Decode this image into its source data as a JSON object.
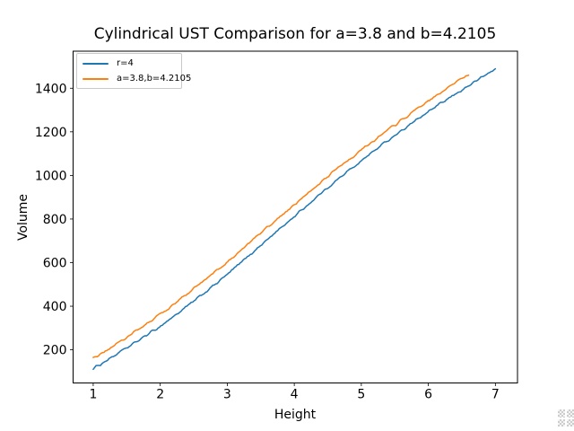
{
  "window": {
    "background": "#ffffff"
  },
  "chart_data": {
    "type": "line",
    "title": "Cylindrical UST Comparison for a=3.8 and b=4.2105",
    "xlabel": "Height",
    "ylabel": "Volume",
    "xlim": [
      0.7,
      7.33
    ],
    "ylim": [
      48,
      1570
    ],
    "x_ticks": [
      1,
      2,
      3,
      4,
      5,
      6,
      7
    ],
    "y_ticks": [
      200,
      400,
      600,
      800,
      1000,
      1200,
      1400
    ],
    "grid": false,
    "legend_position": "upper-left",
    "series": [
      {
        "name": "r=4",
        "color": "#1f77b4",
        "points": [
          [
            1.0,
            114
          ],
          [
            1.5,
            208
          ],
          [
            2.0,
            308
          ],
          [
            2.5,
            422
          ],
          [
            3.0,
            545
          ],
          [
            3.5,
            680
          ],
          [
            4.0,
            812
          ],
          [
            4.5,
            945
          ],
          [
            5.0,
            1068
          ],
          [
            5.5,
            1185
          ],
          [
            6.0,
            1292
          ],
          [
            6.5,
            1392
          ],
          [
            7.0,
            1489
          ]
        ]
      },
      {
        "name": "a=3.8,b=4.2105",
        "color": "#ff7f0e",
        "points": [
          [
            1.0,
            158
          ],
          [
            1.5,
            258
          ],
          [
            2.0,
            362
          ],
          [
            2.5,
            480
          ],
          [
            3.0,
            602
          ],
          [
            3.5,
            736
          ],
          [
            4.0,
            866
          ],
          [
            4.5,
            996
          ],
          [
            5.0,
            1118
          ],
          [
            5.5,
            1232
          ],
          [
            6.0,
            1342
          ],
          [
            6.6,
            1464
          ]
        ]
      }
    ],
    "style": {
      "noise_amplitude": 8,
      "samples_per_series": 280,
      "line_width": 1.5,
      "axes_color": "#000000",
      "tick_label_color": "#000000"
    }
  }
}
